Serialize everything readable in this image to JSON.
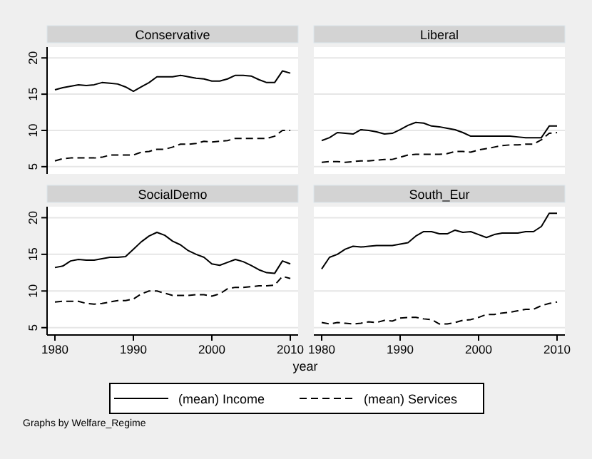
{
  "chart_data": [
    {
      "type": "line",
      "title": "Conservative",
      "x": [
        1980,
        1981,
        1982,
        1983,
        1984,
        1985,
        1986,
        1987,
        1988,
        1989,
        1990,
        1991,
        1992,
        1993,
        1994,
        1995,
        1996,
        1997,
        1998,
        1999,
        2000,
        2001,
        2002,
        2003,
        2004,
        2005,
        2006,
        2007,
        2008,
        2009,
        2010
      ],
      "xlim": [
        1979,
        2011
      ],
      "xticks": [
        1980,
        1990,
        2000,
        2010
      ],
      "ylim": [
        4,
        21.5
      ],
      "yticks": [
        5,
        10,
        15,
        20
      ],
      "grid": "y",
      "tick_labels": "y",
      "legend": "bottom",
      "annotations": [
        "Graphs by Welfare_Regime"
      ],
      "series": [
        {
          "name": "(mean) Income",
          "color": "#000000",
          "line_style": "solid",
          "values": [
            15.6,
            15.9,
            16.1,
            16.3,
            16.2,
            16.3,
            16.6,
            16.5,
            16.4,
            16.0,
            15.4,
            16.0,
            16.6,
            17.4,
            17.4,
            17.4,
            17.6,
            17.4,
            17.2,
            17.1,
            16.8,
            16.8,
            17.1,
            17.6,
            17.6,
            17.5,
            17.0,
            16.6,
            16.6,
            18.2,
            17.9
          ]
        },
        {
          "name": "(mean) Services",
          "color": "#000000",
          "line_style": "dashed",
          "values": [
            5.8,
            6.1,
            6.2,
            6.2,
            6.2,
            6.2,
            6.3,
            6.6,
            6.6,
            6.6,
            6.6,
            7.0,
            7.1,
            7.4,
            7.4,
            7.7,
            8.1,
            8.1,
            8.2,
            8.5,
            8.4,
            8.5,
            8.6,
            8.9,
            8.9,
            8.9,
            8.9,
            8.9,
            9.2,
            10.0,
            10.0
          ]
        }
      ]
    },
    {
      "type": "line",
      "title": "Liberal",
      "x": [
        1980,
        1981,
        1982,
        1983,
        1984,
        1985,
        1986,
        1987,
        1988,
        1989,
        1990,
        1991,
        1992,
        1993,
        1994,
        1995,
        1996,
        1997,
        1998,
        1999,
        2000,
        2001,
        2002,
        2003,
        2004,
        2005,
        2006,
        2007,
        2008,
        2009,
        2010
      ],
      "xlim": [
        1979,
        2011
      ],
      "xticks": [
        1980,
        1990,
        2000,
        2010
      ],
      "ylim": [
        4,
        21.5
      ],
      "yticks": [
        5,
        10,
        15,
        20
      ],
      "grid": "y",
      "tick_labels": false,
      "series": [
        {
          "color": "#000000",
          "line_style": "solid",
          "values": [
            8.6,
            9.0,
            9.7,
            9.6,
            9.5,
            10.1,
            10.0,
            9.8,
            9.5,
            9.6,
            10.1,
            10.7,
            11.1,
            11.0,
            10.6,
            10.5,
            10.3,
            10.1,
            9.7,
            9.2,
            9.2,
            9.2,
            9.2,
            9.2,
            9.2,
            9.1,
            9.0,
            9.0,
            9.0,
            10.6,
            10.6
          ]
        },
        {
          "color": "#000000",
          "line_style": "dashed",
          "values": [
            5.6,
            5.7,
            5.7,
            5.6,
            5.7,
            5.8,
            5.8,
            5.9,
            6.0,
            6.0,
            6.3,
            6.6,
            6.7,
            6.7,
            6.7,
            6.7,
            6.8,
            7.1,
            7.1,
            7.0,
            7.3,
            7.5,
            7.7,
            7.9,
            8.0,
            8.0,
            8.1,
            8.1,
            8.7,
            9.6,
            9.7
          ]
        }
      ]
    },
    {
      "type": "line",
      "title": "SocialDemo",
      "x": [
        1980,
        1981,
        1982,
        1983,
        1984,
        1985,
        1986,
        1987,
        1988,
        1989,
        1990,
        1991,
        1992,
        1993,
        1994,
        1995,
        1996,
        1997,
        1998,
        1999,
        2000,
        2001,
        2002,
        2003,
        2004,
        2005,
        2006,
        2007,
        2008,
        2009,
        2010
      ],
      "xlim": [
        1979,
        2011
      ],
      "xticks": [
        1980,
        1990,
        2000,
        2010
      ],
      "ylim": [
        4,
        21.5
      ],
      "yticks": [
        5,
        10,
        15,
        20
      ],
      "grid": "y",
      "xlabel": "year",
      "series": [
        {
          "color": "#000000",
          "line_style": "solid",
          "values": [
            13.2,
            13.4,
            14.1,
            14.3,
            14.2,
            14.2,
            14.4,
            14.6,
            14.6,
            14.7,
            15.7,
            16.7,
            17.5,
            18.0,
            17.6,
            16.8,
            16.3,
            15.5,
            15.0,
            14.6,
            13.7,
            13.5,
            13.9,
            14.3,
            14.0,
            13.5,
            12.9,
            12.5,
            12.4,
            14.1,
            13.7
          ]
        },
        {
          "color": "#000000",
          "line_style": "dashed",
          "values": [
            8.5,
            8.6,
            8.6,
            8.6,
            8.3,
            8.2,
            8.3,
            8.5,
            8.7,
            8.7,
            8.9,
            9.6,
            10.0,
            10.0,
            9.7,
            9.4,
            9.4,
            9.4,
            9.5,
            9.5,
            9.3,
            9.6,
            10.3,
            10.5,
            10.5,
            10.6,
            10.7,
            10.7,
            10.8,
            12.0,
            11.7
          ]
        }
      ]
    },
    {
      "type": "line",
      "title": "South_Eur",
      "x": [
        1980,
        1981,
        1982,
        1983,
        1984,
        1985,
        1986,
        1987,
        1988,
        1989,
        1990,
        1991,
        1992,
        1993,
        1994,
        1995,
        1996,
        1997,
        1998,
        1999,
        2000,
        2001,
        2002,
        2003,
        2004,
        2005,
        2006,
        2007,
        2008,
        2009,
        2010
      ],
      "xlim": [
        1979,
        2011
      ],
      "xticks": [
        1980,
        1990,
        2000,
        2010
      ],
      "ylim": [
        4,
        21.5
      ],
      "yticks": [
        5,
        10,
        15,
        20
      ],
      "grid": "y",
      "tick_labels": "x",
      "series": [
        {
          "color": "#000000",
          "line_style": "solid",
          "values": [
            13.0,
            14.6,
            15.0,
            15.7,
            16.1,
            16.0,
            16.1,
            16.2,
            16.2,
            16.2,
            16.4,
            16.6,
            17.5,
            18.1,
            18.1,
            17.8,
            17.8,
            18.3,
            18.0,
            18.1,
            17.7,
            17.3,
            17.7,
            17.9,
            17.9,
            17.9,
            18.1,
            18.1,
            18.8,
            20.6,
            20.6
          ]
        },
        {
          "color": "#000000",
          "line_style": "dashed",
          "values": [
            5.7,
            5.5,
            5.7,
            5.6,
            5.5,
            5.6,
            5.8,
            5.7,
            6.0,
            5.9,
            6.3,
            6.4,
            6.4,
            6.2,
            6.1,
            5.5,
            5.5,
            5.7,
            6.0,
            6.1,
            6.4,
            6.8,
            6.8,
            7.0,
            7.1,
            7.3,
            7.5,
            7.5,
            8.0,
            8.3,
            8.5
          ]
        }
      ]
    }
  ]
}
